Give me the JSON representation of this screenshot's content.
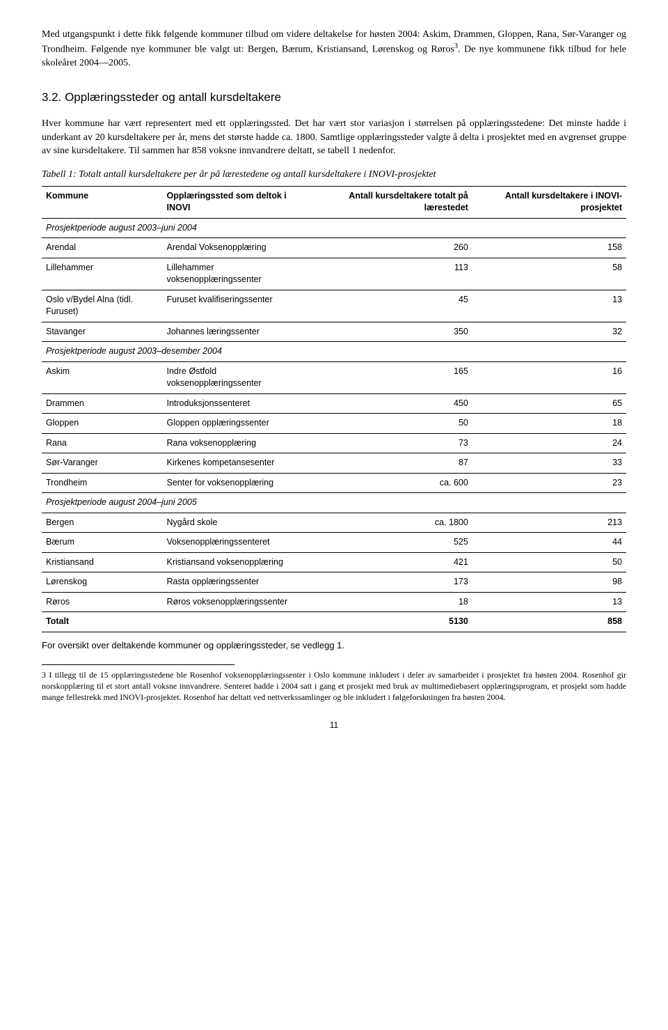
{
  "paragraphs": {
    "intro1": "Med utgangspunkt i dette fikk følgende kommuner tilbud om videre deltakelse for høsten 2004: Askim, Drammen, Gloppen, Rana, Sør-Varanger og Trondheim. Følgende nye kommuner ble valgt ut: Bergen, Bærum, Kristiansand, Lørenskog og Røros",
    "intro1_after_sup": ". De nye kommunene fikk tilbud for hele skoleåret 2004—2005.",
    "sup3": "3",
    "heading": "3.2. Opplæringssteder og antall kursdeltakere",
    "body1": "Hver kommune har vært representert med ett opplæringssted. Det har vært stor variasjon i størrelsen på opplæringsstedene: Det minste hadde i underkant av 20 kursdeltakere per år, mens det største hadde ca. 1800. Samtlige opplæringssteder valgte å delta i prosjektet med en avgrenset gruppe av sine kursdeltakere. Til sammen har 858 voksne innvandrere deltatt, se tabell 1 nedenfor.",
    "caption": "Tabell 1: Totalt antall kursdeltakere per år på lærestedene og antall kursdeltakere i INOVI-prosjektet",
    "after_table": "For oversikt over deltakende kommuner og opplæringssteder, se vedlegg 1.",
    "footnote_num": "3",
    "footnote": " I tillegg til de 15 opplæringsstedene ble Rosenhof voksenopplæringssenter i Oslo kommune inkludert i deler av samarbeidet i prosjektet fra høsten 2004. Rosenhof gir norskopplæring til et stort antall voksne innvandrere. Senteret hadde i 2004 satt i gang et prosjekt med bruk av multimediebasert opplæringsprogram, et prosjekt som hadde mange fellestrekk med INOVI-prosjektet. Rosenhof har deltatt ved nettverkssamlinger og ble inkludert i følgeforskningen fra høsten 2004.",
    "page_number": "11"
  },
  "table": {
    "headers": {
      "col1": "Kommune",
      "col2": "Opplæringssted som deltok i INOVI",
      "col3": "Antall kursdeltakere totalt på lærestedet",
      "col4": "Antall kursdeltakere i INOVI-prosjektet"
    },
    "sections": [
      {
        "label": "Prosjektperiode august 2003–juni 2004",
        "rows": [
          {
            "c1": "Arendal",
            "c2": "Arendal Voksenopplæring",
            "c3": "260",
            "c4": "158"
          },
          {
            "c1": "Lillehammer",
            "c2": "Lillehammer voksenopplæringssenter",
            "c3": "113",
            "c4": "58"
          },
          {
            "c1": "Oslo v/Bydel Alna (tidl. Furuset)",
            "c2": "Furuset kvalifiseringssenter",
            "c3": "45",
            "c4": "13"
          },
          {
            "c1": "Stavanger",
            "c2": "Johannes læringssenter",
            "c3": "350",
            "c4": "32"
          }
        ]
      },
      {
        "label": "Prosjektperiode august 2003–desember 2004",
        "rows": [
          {
            "c1": "Askim",
            "c2": "Indre Østfold voksenopplæringssenter",
            "c3": "165",
            "c4": "16"
          },
          {
            "c1": "Drammen",
            "c2": "Introduksjonssenteret",
            "c3": "450",
            "c4": "65"
          },
          {
            "c1": "Gloppen",
            "c2": "Gloppen opplæringssenter",
            "c3": "50",
            "c4": "18"
          },
          {
            "c1": "Rana",
            "c2": "Rana voksenopplæring",
            "c3": "73",
            "c4": "24"
          },
          {
            "c1": "Sør-Varanger",
            "c2": "Kirkenes kompetansesenter",
            "c3": "87",
            "c4": "33"
          },
          {
            "c1": "Trondheim",
            "c2": "Senter for voksenopplæring",
            "c3": "ca. 600",
            "c4": "23"
          }
        ]
      },
      {
        "label": "Prosjektperiode august 2004–juni 2005",
        "rows": [
          {
            "c1": "Bergen",
            "c2": "Nygård skole",
            "c3": "ca. 1800",
            "c4": "213"
          },
          {
            "c1": "Bærum",
            "c2": "Voksenopplæringssenteret",
            "c3": "525",
            "c4": "44"
          },
          {
            "c1": "Kristiansand",
            "c2": "Kristiansand voksenopplæring",
            "c3": "421",
            "c4": "50"
          },
          {
            "c1": "Lørenskog",
            "c2": "Rasta opplæringssenter",
            "c3": "173",
            "c4": "98"
          },
          {
            "c1": "Røros",
            "c2": "Røros voksenopplæringssenter",
            "c3": "18",
            "c4": "13"
          }
        ]
      }
    ],
    "total": {
      "label": "Totalt",
      "c3": "5130",
      "c4": "858"
    }
  }
}
